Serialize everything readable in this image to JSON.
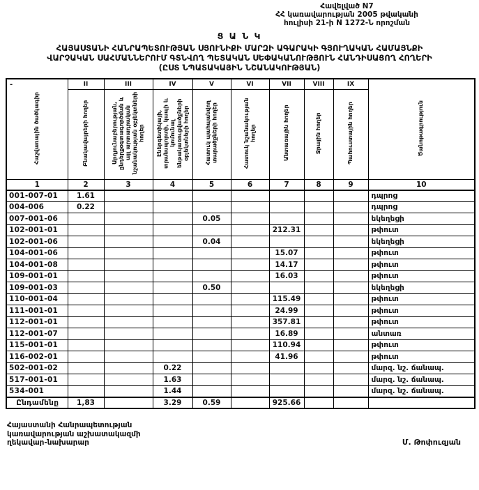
{
  "colors": {
    "text": "#111111",
    "border": "#000000",
    "background": "#ffffff"
  },
  "annex": {
    "line1": "Հավելված N7",
    "line2": "ՀՀ կառավարության 2005 թվականի",
    "line3": "հուլիսի 21-ի N 1272-Ն որոշման"
  },
  "heading": {
    "list_title": "Ց Ա Ն Կ",
    "title_line1": "ՀԱՅԱՍՏԱՆԻ ՀԱՆՐԱՊԵՏՈՒԹՅԱՆ ՍՅՈՒՆԻՔԻ ՄԱՐԶԻ ԱԳԱՐԱԿԻ ԳՅՈՒՂԱԿԱՆ ՀԱՄԱՅՆՔԻ",
    "title_line2": "ՎԱՐՉԱԿԱՆ ՍԱՀՄԱՆՆԵՐՈՒՄ  ԳՏՆՎՈՂ  ՊԵՏԱԿԱՆ ՍԵՓԱԿԱՆՈՒԹՅՈՒՆ  ՀԱՆԴԻՍԱՑՈՂ ՀՈՂԵՐԻ",
    "title_line3": "(ԸՍՏ ՆՊԱՏԱԿԱՅԻՆ ՆՇԱՆԱԿՈՒԹՅԱՆ)"
  },
  "table": {
    "corner_mark": "-",
    "roman_numerals": [
      "II",
      "III",
      "IV",
      "V",
      "VI",
      "VII",
      "VIII",
      "IX"
    ],
    "column_headers": [
      "Հաշվառային ծածկագիր",
      "Բնակավայրերի հողեր",
      "Արդյունաբերության, ընդերքօգտագործման և այլ արտադրական նշանակության օբյեկտների հողեր",
      "Էներգետիկայի, տրանսպորտի, կապի և կոմունալ ենթակառուցվածքների օբյեկտների հողեր",
      "Հատուկ պահպանվող տարածքների հողեր",
      "Հատուկ նշանակության հողեր",
      "Անտառային հողեր",
      "Ջրային հողեր",
      "Պահուստային հողեր",
      "Ծանոթագրություն"
    ],
    "column_numbers": [
      "1",
      "2",
      "3",
      "4",
      "5",
      "6",
      "7",
      "8",
      "9",
      "10"
    ],
    "rows": [
      {
        "code": "001-007-01",
        "values": [
          "1.61",
          "",
          "",
          "",
          "",
          "",
          "",
          ""
        ],
        "note": "դպրոց"
      },
      {
        "code": "004-006",
        "values": [
          "0.22",
          "",
          "",
          "",
          "",
          "",
          "",
          ""
        ],
        "note": "դպրոց"
      },
      {
        "code": "007-001-06",
        "values": [
          "",
          "",
          "",
          "0.05",
          "",
          "",
          "",
          ""
        ],
        "note": "եկեղեցի"
      },
      {
        "code": "102-001-01",
        "values": [
          "",
          "",
          "",
          "",
          "",
          "212.31",
          "",
          ""
        ],
        "note": "թփուտ"
      },
      {
        "code": "102-001-06",
        "values": [
          "",
          "",
          "",
          "0.04",
          "",
          "",
          "",
          ""
        ],
        "note": "եկեղեցի"
      },
      {
        "code": "104-001-06",
        "values": [
          "",
          "",
          "",
          "",
          "",
          "15.07",
          "",
          ""
        ],
        "note": "թփուտ"
      },
      {
        "code": "104-001-08",
        "values": [
          "",
          "",
          "",
          "",
          "",
          "14.17",
          "",
          ""
        ],
        "note": "թփուտ"
      },
      {
        "code": "109-001-01",
        "values": [
          "",
          "",
          "",
          "",
          "",
          "16.03",
          "",
          ""
        ],
        "note": "թփուտ"
      },
      {
        "code": "109-001-03",
        "values": [
          "",
          "",
          "",
          "0.50",
          "",
          "",
          "",
          ""
        ],
        "note": "եկեղեցի"
      },
      {
        "code": "110-001-04",
        "values": [
          "",
          "",
          "",
          "",
          "",
          "115.49",
          "",
          ""
        ],
        "note": "թփուտ"
      },
      {
        "code": "111-001-01",
        "values": [
          "",
          "",
          "",
          "",
          "",
          "24.99",
          "",
          ""
        ],
        "note": "թփուտ"
      },
      {
        "code": "112-001-01",
        "values": [
          "",
          "",
          "",
          "",
          "",
          "357.81",
          "",
          ""
        ],
        "note": "թփուտ"
      },
      {
        "code": "112-001-07",
        "values": [
          "",
          "",
          "",
          "",
          "",
          "16.89",
          "",
          ""
        ],
        "note": "անտառ"
      },
      {
        "code": "115-001-01",
        "values": [
          "",
          "",
          "",
          "",
          "",
          "110.94",
          "",
          ""
        ],
        "note": "թփուտ"
      },
      {
        "code": "116-002-01",
        "values": [
          "",
          "",
          "",
          "",
          "",
          "41.96",
          "",
          ""
        ],
        "note": "թփուտ"
      },
      {
        "code": "502-001-02",
        "values": [
          "",
          "",
          "0.22",
          "",
          "",
          "",
          "",
          ""
        ],
        "note": "մարզ. նշ. ճանապ."
      },
      {
        "code": "517-001-01",
        "values": [
          "",
          "",
          "1.63",
          "",
          "",
          "",
          "",
          ""
        ],
        "note": "մարզ. նշ. ճանապ."
      },
      {
        "code": "534-001",
        "values": [
          "",
          "",
          "1.44",
          "",
          "",
          "",
          "",
          ""
        ],
        "note": "մարզ. նշ. ճանապ."
      }
    ],
    "total": {
      "label": "Ընդամենը",
      "values": [
        "1,83",
        "",
        "3.29",
        "0.59",
        "",
        "925.66",
        "",
        ""
      ],
      "note": ""
    }
  },
  "footer": {
    "left_line1": "Հայաստանի Հանրապետության",
    "left_line2": "կառավարության աշխատակազմի",
    "left_line3": "ղեկավար-նախարար",
    "signature": "Մ. Թոփուզյան"
  }
}
